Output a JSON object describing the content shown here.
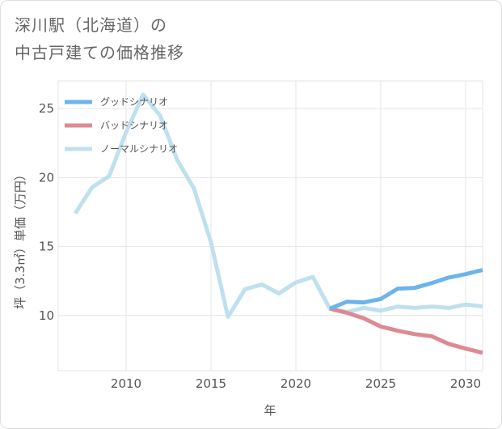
{
  "title": {
    "line1": "深川駅（北海道）の",
    "line2": "中古戸建ての価格推移"
  },
  "chart_data": {
    "type": "line",
    "xlabel": "年",
    "ylabel": "坪（3.3㎡）単価（万円）",
    "xlim": [
      2006,
      2031
    ],
    "ylim": [
      6,
      27
    ],
    "x_ticks": [
      "2010",
      "2015",
      "2020",
      "2025",
      "2030"
    ],
    "y_ticks": [
      "10",
      "15",
      "20",
      "25"
    ],
    "grid": true,
    "legend_position": "top-left",
    "series": [
      {
        "name": "グッドシナリオ",
        "color": "#6cb4ea",
        "x": [
          2022,
          2023,
          2024,
          2025,
          2026,
          2027,
          2028,
          2029,
          2030,
          2031
        ],
        "values": [
          10.5,
          11.0,
          10.95,
          11.2,
          11.95,
          12.0,
          12.35,
          12.75,
          13.0,
          13.3
        ]
      },
      {
        "name": "バッドシナリオ",
        "color": "#dd8a92",
        "x": [
          2022,
          2023,
          2024,
          2025,
          2026,
          2027,
          2028,
          2029,
          2030,
          2031
        ],
        "values": [
          10.5,
          10.2,
          9.8,
          9.2,
          8.9,
          8.65,
          8.5,
          7.95,
          7.6,
          7.3
        ]
      },
      {
        "name": "ノーマルシナリオ",
        "color": "#bfe0ee",
        "x": [
          2007,
          2008,
          2009,
          2010,
          2011,
          2012,
          2013,
          2014,
          2015,
          2016,
          2017,
          2018,
          2019,
          2020,
          2021,
          2022,
          2023,
          2024,
          2025,
          2026,
          2027,
          2028,
          2029,
          2030,
          2031
        ],
        "values": [
          17.4,
          19.3,
          20.1,
          23.3,
          26.0,
          24.5,
          21.3,
          19.2,
          15.3,
          9.9,
          11.9,
          12.25,
          11.6,
          12.4,
          12.8,
          10.5,
          10.25,
          10.55,
          10.35,
          10.65,
          10.55,
          10.65,
          10.55,
          10.8,
          10.65
        ]
      }
    ]
  }
}
